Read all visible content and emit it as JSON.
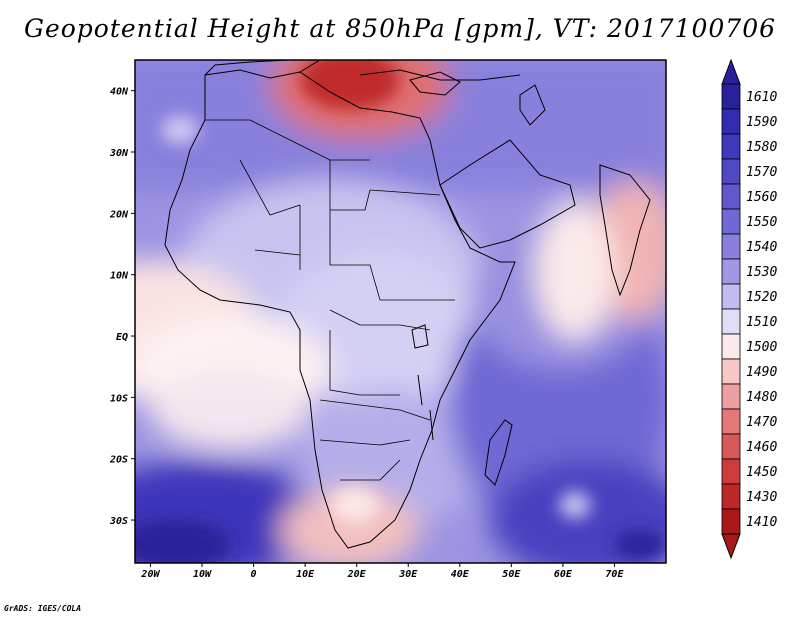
{
  "title": "Geopotential Height at 850hPa [gpm], VT: 2017100706",
  "credit": "GrADS: IGES/COLA",
  "axes": {
    "x_ticks": [
      "20W",
      "10W",
      "0",
      "10E",
      "20E",
      "30E",
      "40E",
      "50E",
      "60E",
      "70E"
    ],
    "y_ticks": [
      "40N",
      "30N",
      "20N",
      "10N",
      "EQ",
      "10S",
      "20S",
      "30S"
    ]
  },
  "colorbar": {
    "labels": [
      "1610",
      "1590",
      "1580",
      "1570",
      "1560",
      "1550",
      "1540",
      "1530",
      "1520",
      "1510",
      "1500",
      "1490",
      "1480",
      "1470",
      "1460",
      "1450",
      "1430",
      "1410"
    ],
    "colors_top_to_bottom": [
      "#28209c",
      "#342cb0",
      "#4038bc",
      "#5048c4",
      "#6058cc",
      "#7068d4",
      "#8880dc",
      "#a098e4",
      "#c0bcee",
      "#e0ddf6",
      "#fbeaea",
      "#f6c8c8",
      "#eea0a0",
      "#e47878",
      "#d85858",
      "#cc3c3c",
      "#bc2828",
      "#a81818"
    ]
  },
  "chart_data": {
    "type": "heatmap",
    "variable": "Geopotential Height at 850hPa [gpm]",
    "valid_time": "2017100706",
    "lon_range": [
      -23,
      80
    ],
    "lat_range": [
      -37,
      45
    ],
    "levels": [
      1410,
      1430,
      1450,
      1460,
      1470,
      1480,
      1490,
      1500,
      1510,
      1520,
      1530,
      1540,
      1550,
      1560,
      1570,
      1580,
      1590,
      1610
    ]
  }
}
